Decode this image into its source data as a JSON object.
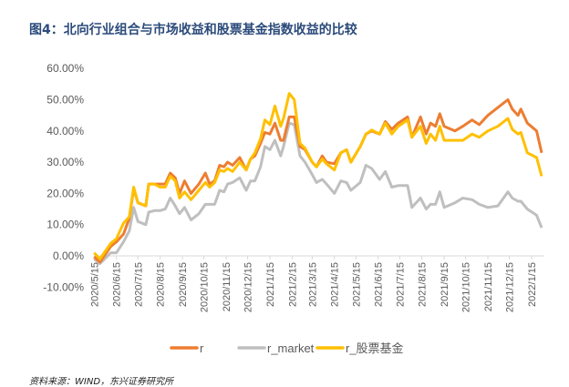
{
  "title": "图4：北向行业组合与市场收益和股票基金指数收益的比较",
  "source": "资料来源：WIND，东兴证券研究所",
  "chart_data": {
    "type": "line",
    "title": "",
    "xlabel": "",
    "ylabel": "",
    "ylim": [
      -10,
      60
    ],
    "y_ticks": [
      "60.00%",
      "50.00%",
      "40.00%",
      "30.00%",
      "20.00%",
      "10.00%",
      "0.00%",
      "-10.00%"
    ],
    "x_ticks": [
      "2020/5/15",
      "2020/6/15",
      "2020/7/15",
      "2020/8/15",
      "2020/9/15",
      "2020/10/15",
      "2020/11/15",
      "2020/12/15",
      "2021/1/15",
      "2021/2/15",
      "2021/3/15",
      "2021/4/15",
      "2021/5/15",
      "2021/6/15",
      "2021/7/15",
      "2021/8/15",
      "2021/9/15",
      "2021/10/15",
      "2021/11/15",
      "2021/12/15",
      "2022/1/15"
    ],
    "grid": false,
    "legend_position": "bottom",
    "x": [
      "2020-05-15",
      "2020-05-23",
      "2020-06-07",
      "2020-06-15",
      "2020-06-25",
      "2020-07-03",
      "2020-07-09",
      "2020-07-15",
      "2020-07-26",
      "2020-07-30",
      "2020-08-07",
      "2020-08-15",
      "2020-08-22",
      "2020-08-29",
      "2020-09-05",
      "2020-09-11",
      "2020-09-18",
      "2020-09-27",
      "2020-10-08",
      "2020-10-17",
      "2020-10-23",
      "2020-10-30",
      "2020-11-06",
      "2020-11-12",
      "2020-11-17",
      "2020-11-24",
      "2020-12-04",
      "2020-12-13",
      "2020-12-19",
      "2020-12-25",
      "2021-01-02",
      "2021-01-08",
      "2021-01-15",
      "2021-01-22",
      "2021-01-30",
      "2021-02-03",
      "2021-02-11",
      "2021-02-18",
      "2021-02-26",
      "2021-03-05",
      "2021-03-15",
      "2021-03-21",
      "2021-03-29",
      "2021-04-04",
      "2021-04-15",
      "2021-04-24",
      "2021-05-02",
      "2021-05-08",
      "2021-05-21",
      "2021-05-29",
      "2021-06-06",
      "2021-06-17",
      "2021-06-25",
      "2021-07-04",
      "2021-07-13",
      "2021-07-26",
      "2021-08-01",
      "2021-08-13",
      "2021-08-21",
      "2021-08-27",
      "2021-09-03",
      "2021-09-09",
      "2021-09-15",
      "2021-09-30",
      "2021-10-11",
      "2021-10-24",
      "2021-11-03",
      "2021-11-15",
      "2021-11-29",
      "2021-12-13",
      "2021-12-19",
      "2021-12-27",
      "2021-12-31",
      "2022-01-09",
      "2022-01-22",
      "2022-01-29"
    ],
    "series": [
      {
        "name": "r",
        "color": "#ED7D31",
        "values": [
          -0.3,
          -2,
          3,
          4.5,
          7,
          12,
          21.5,
          17,
          16,
          23,
          23,
          23,
          23,
          26.5,
          25,
          20,
          24,
          20,
          23,
          26.5,
          23,
          24,
          29,
          28.5,
          30,
          29,
          31.5,
          27.5,
          31,
          32,
          36,
          39.5,
          39,
          42.5,
          37,
          37,
          44.5,
          44.5,
          35,
          34,
          30,
          28.5,
          32,
          30,
          29.5,
          33,
          34,
          30,
          35,
          39,
          40,
          39,
          43,
          40.5,
          42.5,
          44.5,
          38,
          44.5,
          39,
          42.5,
          41.5,
          45.5,
          41.5,
          40,
          41.5,
          43.5,
          42,
          45,
          47.5,
          50,
          47,
          45,
          47,
          42.5,
          40,
          33
        ]
      },
      {
        "name": "r_market",
        "color": "#BFBFBF",
        "values": [
          -1,
          -2.5,
          1,
          1,
          4.5,
          8,
          15.5,
          11,
          10,
          14,
          14.5,
          14.5,
          15,
          18.5,
          16,
          13.5,
          15.5,
          11.5,
          13.5,
          16.5,
          16.5,
          16.5,
          21,
          20.5,
          23,
          23.5,
          25,
          21,
          24,
          24,
          28.5,
          35,
          34,
          37,
          32,
          35,
          42.5,
          42,
          32,
          30,
          26,
          23.5,
          24.5,
          23,
          20,
          24,
          23.5,
          21,
          23.5,
          29,
          28,
          24.5,
          27,
          22,
          22.5,
          22.5,
          15.5,
          18.5,
          15,
          16.5,
          16.5,
          20.5,
          15.5,
          17,
          18.5,
          18,
          16.5,
          15.5,
          16,
          20.5,
          18.5,
          17.5,
          17.5,
          15,
          13,
          9
        ]
      },
      {
        "name": "r_股票基金",
        "color": "#FFC000",
        "values": [
          1,
          -1,
          4,
          5.5,
          10.5,
          12.5,
          22,
          17,
          16,
          23,
          23,
          22,
          22,
          25.5,
          24,
          18.5,
          20.5,
          18,
          21,
          23.5,
          22,
          23.5,
          27.5,
          27,
          28,
          27,
          30,
          27.5,
          31,
          33,
          37.5,
          43.5,
          42,
          48,
          41.5,
          44,
          52,
          50,
          36,
          34.5,
          30,
          28.5,
          31,
          29.5,
          27.5,
          33,
          34,
          30,
          35,
          39,
          40.3,
          39,
          42.5,
          39,
          41.5,
          43.5,
          38,
          41.5,
          36,
          39,
          37,
          41.5,
          37,
          37,
          37,
          39,
          38,
          40,
          41.5,
          44,
          40.5,
          39,
          39.5,
          33,
          31.5,
          25.5
        ]
      }
    ]
  }
}
